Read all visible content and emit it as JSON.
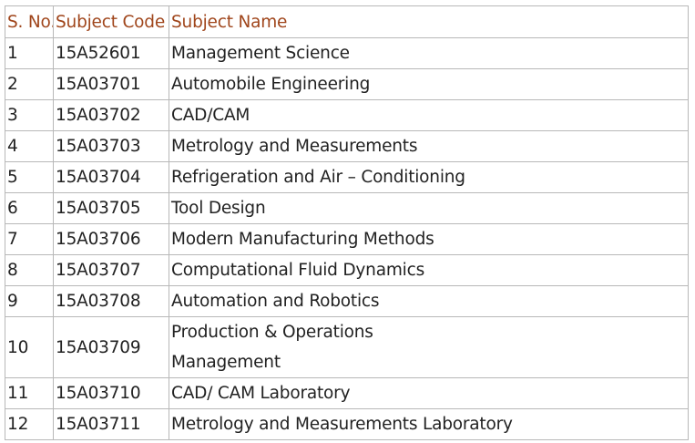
{
  "table": {
    "headers": {
      "sno": "S. No.",
      "code": "Subject Code",
      "name": "Subject Name"
    },
    "rows": [
      {
        "sno": "1",
        "code": "15A52601",
        "name": "Management Science"
      },
      {
        "sno": "2",
        "code": "15A03701",
        "name": "Automobile Engineering"
      },
      {
        "sno": "3",
        "code": "15A03702",
        "name": "CAD/CAM"
      },
      {
        "sno": "4",
        "code": "15A03703",
        "name": "Metrology and Measurements"
      },
      {
        "sno": "5",
        "code": "15A03704",
        "name": "Refrigeration and Air – Conditioning"
      },
      {
        "sno": "6",
        "code": "15A03705",
        "name": "Tool Design"
      },
      {
        "sno": "7",
        "code": "15A03706",
        "name": "Modern Manufacturing Methods"
      },
      {
        "sno": "8",
        "code": "15A03707",
        "name": "Computational Fluid Dynamics"
      },
      {
        "sno": "9",
        "code": "15A03708",
        "name": "Automation and Robotics"
      },
      {
        "sno": "10",
        "code": "15A03709",
        "name_line1": "Production & Operations",
        "name_line2": "Management"
      },
      {
        "sno": "11",
        "code": "15A03710",
        "name": "CAD/ CAM Laboratory"
      },
      {
        "sno": "12",
        "code": "15A03711",
        "name": "Metrology and Measurements Laboratory"
      }
    ]
  },
  "colors": {
    "header_text": "#a0461c",
    "body_text": "#222222",
    "border": "#b8b8b8"
  }
}
